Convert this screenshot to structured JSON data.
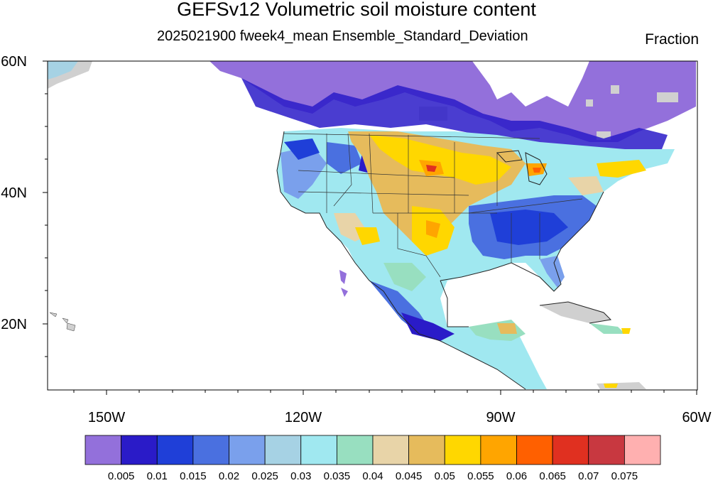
{
  "title": "GEFSv12 Volumetric soil moisture content",
  "subtitle": "2025021900 fweek4_mean Ensemble_Standard_Deviation",
  "units": "Fraction",
  "lat_labels": [
    "60N",
    "40N",
    "20N"
  ],
  "lon_labels": [
    "150W",
    "120W",
    "90W",
    "60W"
  ],
  "colorbar": {
    "labels": [
      "0.005",
      "0.01",
      "0.015",
      "0.02",
      "0.025",
      "0.03",
      "0.035",
      "0.04",
      "0.045",
      "0.05",
      "0.055",
      "0.06",
      "0.065",
      "0.07",
      "0.075"
    ],
    "colors": [
      "#9370db",
      "#2a1bc8",
      "#1f3fd8",
      "#4a70e0",
      "#7aa0ec",
      "#a6d2e4",
      "#a0e8f0",
      "#98dfc0",
      "#e8d4a8",
      "#e6bb5c",
      "#ffd700",
      "#ffa500",
      "#ff6000",
      "#e03020",
      "#c83840",
      "#ffb0b0"
    ]
  },
  "map_extent": {
    "lon": [
      -160,
      -60
    ],
    "lat": [
      10,
      60
    ]
  }
}
